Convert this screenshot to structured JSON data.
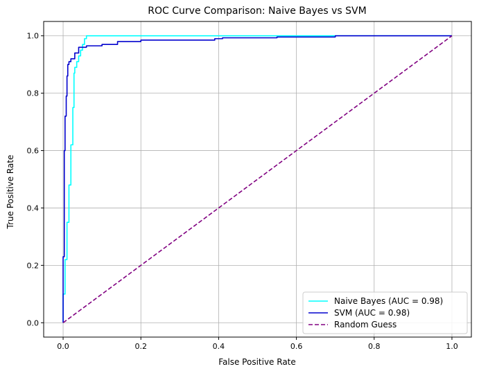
{
  "chart_data": {
    "type": "line",
    "title": "ROC Curve Comparison: Naive Bayes vs SVM",
    "xlabel": "False Positive Rate",
    "ylabel": "True Positive Rate",
    "xlim": [
      -0.05,
      1.05
    ],
    "ylim": [
      -0.05,
      1.05
    ],
    "xticks": [
      0.0,
      0.2,
      0.4,
      0.6,
      0.8,
      1.0
    ],
    "yticks": [
      0.0,
      0.2,
      0.4,
      0.6,
      0.8,
      1.0
    ],
    "xtick_labels": [
      "0.0",
      "0.2",
      "0.4",
      "0.6",
      "0.8",
      "1.0"
    ],
    "ytick_labels": [
      "0.0",
      "0.2",
      "0.4",
      "0.6",
      "0.8",
      "1.0"
    ],
    "grid": true,
    "legend_position": "lower-right",
    "series": [
      {
        "name": "Naive Bayes (AUC = 0.98)",
        "color": "#00ffff",
        "style": "solid",
        "x": [
          0.0,
          0.0,
          0.005,
          0.005,
          0.01,
          0.01,
          0.015,
          0.015,
          0.02,
          0.02,
          0.025,
          0.025,
          0.028,
          0.028,
          0.03,
          0.03,
          0.035,
          0.035,
          0.04,
          0.04,
          0.045,
          0.045,
          0.05,
          0.05,
          0.055,
          0.055,
          0.06,
          0.06,
          0.55,
          0.55,
          0.7,
          0.7,
          1.0
        ],
        "y": [
          0.0,
          0.1,
          0.1,
          0.22,
          0.22,
          0.35,
          0.35,
          0.48,
          0.48,
          0.62,
          0.62,
          0.75,
          0.75,
          0.87,
          0.87,
          0.89,
          0.89,
          0.91,
          0.91,
          0.93,
          0.93,
          0.95,
          0.95,
          0.97,
          0.97,
          0.99,
          0.99,
          1.0,
          1.0,
          1.0,
          1.0,
          1.0,
          1.0
        ]
      },
      {
        "name": "SVM (AUC = 0.98)",
        "color": "#0000cd",
        "style": "solid",
        "x": [
          0.0,
          0.0,
          0.003,
          0.003,
          0.005,
          0.005,
          0.008,
          0.008,
          0.01,
          0.01,
          0.012,
          0.012,
          0.015,
          0.015,
          0.02,
          0.02,
          0.03,
          0.03,
          0.04,
          0.04,
          0.06,
          0.06,
          0.1,
          0.1,
          0.14,
          0.14,
          0.2,
          0.2,
          0.39,
          0.39,
          0.41,
          0.41,
          0.55,
          0.55,
          0.7,
          0.7,
          1.0
        ],
        "y": [
          0.0,
          0.23,
          0.23,
          0.6,
          0.6,
          0.72,
          0.72,
          0.79,
          0.79,
          0.86,
          0.86,
          0.9,
          0.9,
          0.91,
          0.91,
          0.92,
          0.92,
          0.94,
          0.94,
          0.96,
          0.96,
          0.965,
          0.965,
          0.97,
          0.97,
          0.98,
          0.98,
          0.985,
          0.985,
          0.99,
          0.99,
          0.993,
          0.993,
          0.996,
          0.996,
          1.0,
          1.0
        ]
      },
      {
        "name": "Random Guess",
        "color": "#800080",
        "style": "dashed",
        "x": [
          0.0,
          1.0
        ],
        "y": [
          0.0,
          1.0
        ]
      }
    ]
  }
}
